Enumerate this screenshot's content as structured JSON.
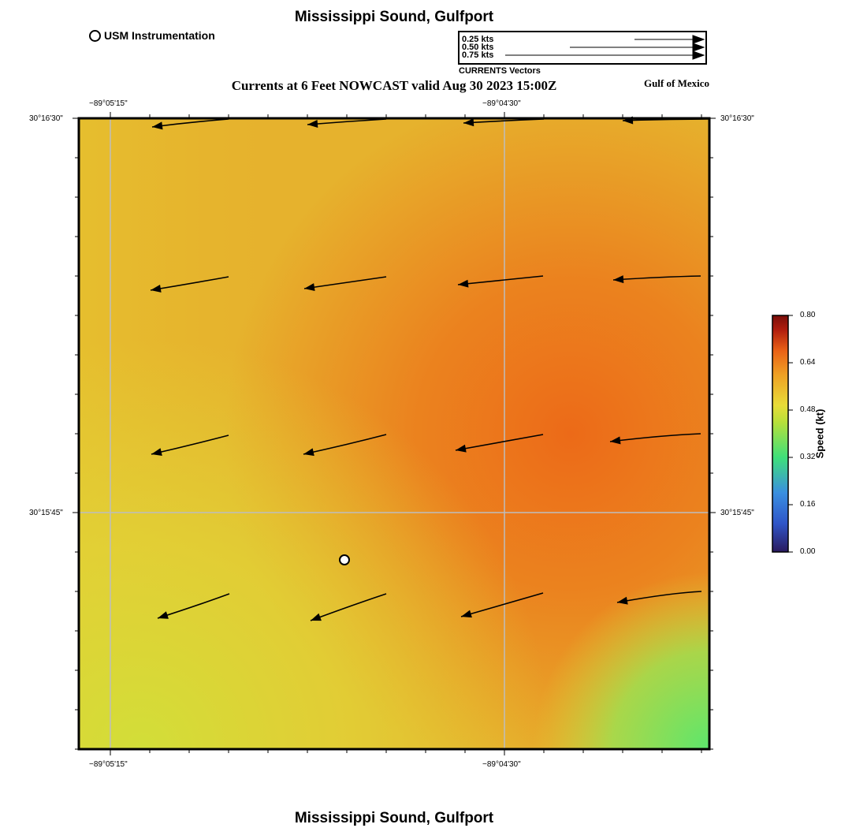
{
  "title": "Mississippi Sound, Gulfport",
  "footer_title": "Mississippi Sound, Gulfport",
  "subtitle": "Currents at 6 Feet NOWCAST valid Aug 30 2023 15:00Z",
  "region_label": "Gulf of Mexico",
  "station_legend": "USM Instrumentation",
  "vector_legend": {
    "entries": [
      "0.25 kts",
      "0.50 kts",
      "0.75 kts"
    ],
    "caption": "CURRENTS Vectors"
  },
  "axes": {
    "lon_ticks": [
      "−89°05'15\"",
      "−89°04'30\""
    ],
    "lat_ticks": [
      "30°16'30\"",
      "30°15'45\""
    ]
  },
  "colorbar": {
    "title": "Speed (kt)",
    "ticks": [
      "0.80",
      "0.64",
      "0.48",
      "0.32",
      "0.16",
      "0.00"
    ],
    "colors": {
      "low": "#2a1a5e",
      "blue": "#3a7fe0",
      "green": "#3fe07a",
      "yellow": "#e8dc38",
      "orange": "#ef8a1e",
      "red": "#b01d0e",
      "high": "#7a0e0a"
    }
  },
  "field_colors": {
    "base": "#e6b22d",
    "hot": "#ec6a18",
    "cool": "#dfdc35",
    "green": "#66e66a"
  },
  "map_marks": [
    "arrows",
    "station-marker",
    "gridlines"
  ]
}
